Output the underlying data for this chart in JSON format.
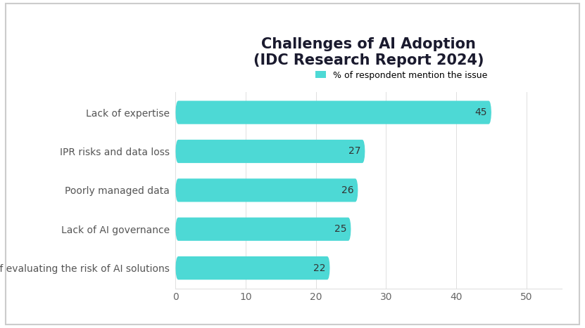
{
  "title": "Challenges of AI Adoption\n(IDC Research Report 2024)",
  "categories": [
    "Challenge of evaluating the risk of AI solutions",
    "Lack of AI governance",
    "Poorly managed data",
    "IPR risks and data loss",
    "Lack of expertise"
  ],
  "values": [
    22,
    25,
    26,
    27,
    45
  ],
  "bar_color": "#4DD9D5",
  "bar_edge_color": "#FFFFFF",
  "xlim": [
    0,
    55
  ],
  "xticks": [
    0,
    10,
    20,
    30,
    40,
    50
  ],
  "legend_label": "% of respondent mention the issue",
  "background_color": "#FFFFFF",
  "title_fontsize": 15,
  "tick_fontsize": 10,
  "label_fontsize": 10,
  "value_fontsize": 10,
  "bar_height": 0.6,
  "title_color": "#1a1a2e",
  "tick_color": "#666666",
  "label_color": "#555555",
  "value_color": "#333333",
  "grid_color": "#e0e0e0",
  "border_color": "#cccccc"
}
